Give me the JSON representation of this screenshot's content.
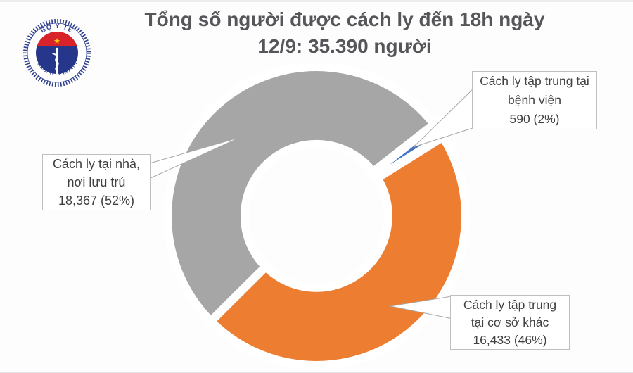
{
  "page": {
    "title_line1": "Tổng số người được cách ly đến 18h ngày",
    "title_line2": "12/9: 35.390 người"
  },
  "logo": {
    "top_text": "BỘ Y TẾ",
    "bottom_text": "MINISTRY OF HEALTH",
    "star": "★",
    "colors": {
      "ring_blue": "#2e3f8f",
      "disc_blue": "#26368b",
      "band_red": "#d8232a",
      "star_yellow": "#ffd200"
    }
  },
  "chart_data": {
    "type": "pie",
    "subtype": "donut",
    "title": "Tổng số người được cách ly đến 18h ngày 12/9: 35.390 người",
    "total_value": 35390,
    "total_label": "35.390 người",
    "start_angle_deg": 52,
    "hole_ratio": 0.5,
    "legend_position": "none",
    "ids": [
      "hospital",
      "other",
      "home"
    ],
    "categories": [
      "Cách ly tập trung tại bệnh viện",
      "Cách ly tập trung tại cơ sở khác",
      "Cách ly tại nhà, nơi lưu trú"
    ],
    "values": [
      590,
      16433,
      18367
    ],
    "percents": [
      2,
      46,
      52
    ],
    "colors": [
      "#4472c4",
      "#ed7d31",
      "#a6a6a6"
    ],
    "exploded": [
      true,
      false,
      false
    ]
  },
  "labels": {
    "hospital": {
      "lines": [
        "Cách ly tập trung tại",
        "bệnh viện",
        "590 (2%)"
      ]
    },
    "home": {
      "lines": [
        "Cách ly tại nhà,",
        "nơi lưu trú",
        "18,367 (52%)"
      ]
    },
    "other": {
      "lines": [
        "Cách ly tập trung",
        "tại cơ sở khác",
        "16,433 (46%)"
      ]
    }
  }
}
